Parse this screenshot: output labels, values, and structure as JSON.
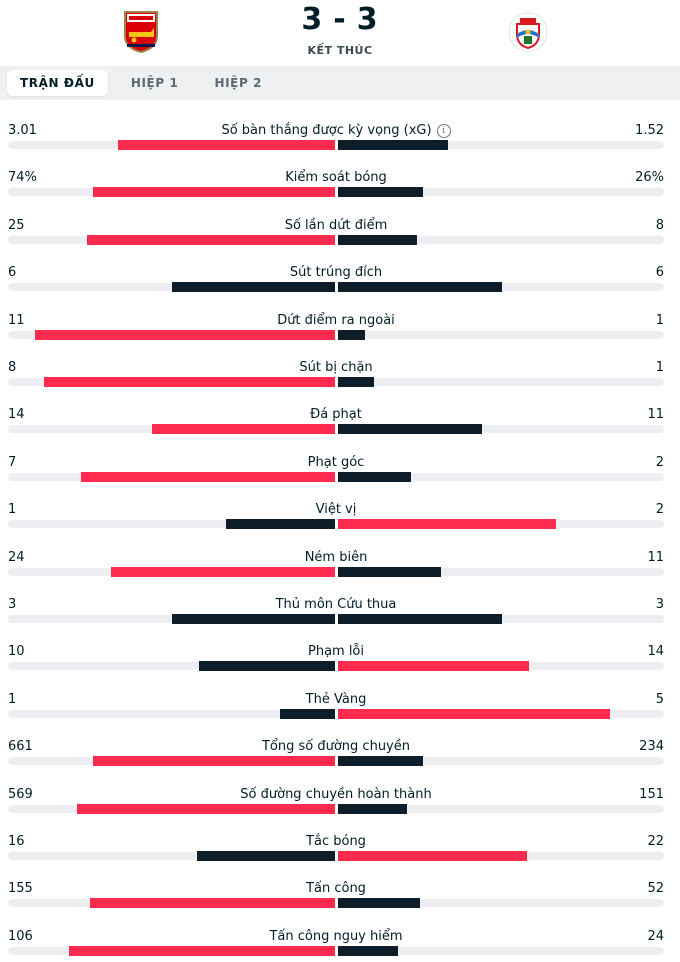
{
  "match": {
    "score_home": "3",
    "score_sep": "-",
    "score_away": "3",
    "status": "KẾT THÚC",
    "home_crest_icon": "arsenal-crest-icon",
    "away_crest_icon": "southampton-crest-icon"
  },
  "tabs": [
    {
      "label": "TRẬN ĐẤU",
      "active": true
    },
    {
      "label": "HIỆP 1",
      "active": false
    },
    {
      "label": "HIỆP 2",
      "active": false
    }
  ],
  "colors": {
    "highlight": "#ff2b4e",
    "dark": "#0e1d2a",
    "track": "#eceef1"
  },
  "stats": [
    {
      "label": "Số bàn thắng được kỳ vọng (xG)",
      "home": "3.01",
      "away": "1.52",
      "home_share": 0.664,
      "away_share": 0.336,
      "info": true
    },
    {
      "label": "Kiểm soát bóng",
      "home": "74%",
      "away": "26%",
      "home_share": 0.74,
      "away_share": 0.26
    },
    {
      "label": "Số lần dứt điểm",
      "home": "25",
      "away": "8",
      "home_share": 0.758,
      "away_share": 0.242
    },
    {
      "label": "Sút trúng đích",
      "home": "6",
      "away": "6",
      "home_share": 0.5,
      "away_share": 0.5
    },
    {
      "label": "Dứt điểm ra ngoài",
      "home": "11",
      "away": "1",
      "home_share": 0.917,
      "away_share": 0.083
    },
    {
      "label": "Sút bị chặn",
      "home": "8",
      "away": "1",
      "home_share": 0.889,
      "away_share": 0.111
    },
    {
      "label": "Đá phạt",
      "home": "14",
      "away": "11",
      "home_share": 0.56,
      "away_share": 0.44
    },
    {
      "label": "Phạt góc",
      "home": "7",
      "away": "2",
      "home_share": 0.778,
      "away_share": 0.222
    },
    {
      "label": "Việt vị",
      "home": "1",
      "away": "2",
      "home_share": 0.333,
      "away_share": 0.667
    },
    {
      "label": "Ném biên",
      "home": "24",
      "away": "11",
      "home_share": 0.686,
      "away_share": 0.314
    },
    {
      "label": "Thủ môn Cứu thua",
      "home": "3",
      "away": "3",
      "home_share": 0.5,
      "away_share": 0.5
    },
    {
      "label": "Phạm lỗi",
      "home": "10",
      "away": "14",
      "home_share": 0.417,
      "away_share": 0.583
    },
    {
      "label": "Thẻ Vàng",
      "home": "1",
      "away": "5",
      "home_share": 0.167,
      "away_share": 0.833
    },
    {
      "label": "Tổng số đường chuyền",
      "home": "661",
      "away": "234",
      "home_share": 0.739,
      "away_share": 0.261
    },
    {
      "label": "Số đường chuyền hoàn thành",
      "home": "569",
      "away": "151",
      "home_share": 0.79,
      "away_share": 0.21
    },
    {
      "label": "Tắc bóng",
      "home": "16",
      "away": "22",
      "home_share": 0.421,
      "away_share": 0.579
    },
    {
      "label": "Tấn công",
      "home": "155",
      "away": "52",
      "home_share": 0.749,
      "away_share": 0.251
    },
    {
      "label": "Tấn công nguy hiểm",
      "home": "106",
      "away": "24",
      "home_share": 0.815,
      "away_share": 0.185
    }
  ]
}
